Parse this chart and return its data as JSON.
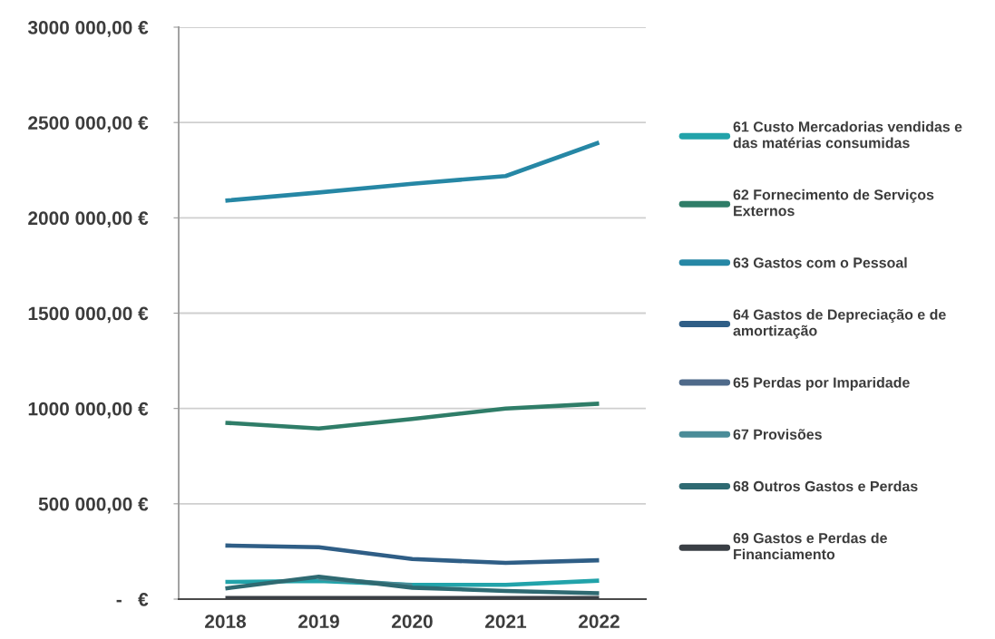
{
  "chart_data": {
    "type": "line",
    "categories": [
      "2018",
      "2019",
      "2020",
      "2021",
      "2022"
    ],
    "series": [
      {
        "name": "61 Custo Mercadorias vendidas e\ndas matérias consumidas",
        "color": "#22a3aa",
        "values": [
          90000,
          95000,
          75000,
          75000,
          97000
        ]
      },
      {
        "name": "62 Fornecimento de Serviços\nExternos",
        "color": "#2f7d68",
        "values": [
          925000,
          895000,
          945000,
          1000000,
          1025000
        ]
      },
      {
        "name": "63 Gastos com o Pessoal",
        "color": "#2687a5",
        "values": [
          2090000,
          2133000,
          2179000,
          2219000,
          2395000
        ]
      },
      {
        "name": "64 Gastos de Depreciação e de\namortização",
        "color": "#2f5e86",
        "values": [
          281000,
          272000,
          210000,
          190000,
          204000
        ]
      },
      {
        "name": "65 Perdas por Imparidade",
        "color": "#4f6a8a",
        "values": [
          null,
          null,
          null,
          null,
          null
        ]
      },
      {
        "name": "67 Provisões",
        "color": "#4a8c98",
        "values": [
          null,
          108000,
          72000,
          null,
          null
        ]
      },
      {
        "name": "68 Outros Gastos e Perdas",
        "color": "#2f6a72",
        "values": [
          56000,
          118000,
          60000,
          43000,
          31000
        ]
      },
      {
        "name": "69 Gastos e Perdas de\nFinanciamento",
        "color": "#3a3f45",
        "values": [
          6000,
          6000,
          6000,
          6000,
          6000
        ]
      }
    ],
    "ylim": [
      0,
      3000000
    ],
    "yticks": [
      {
        "value": 0,
        "label": "-   €"
      },
      {
        "value": 500000,
        "label": "500 000,00 €"
      },
      {
        "value": 1000000,
        "label": "1000 000,00 €"
      },
      {
        "value": 1500000,
        "label": "1500 000,00 €"
      },
      {
        "value": 2000000,
        "label": "2000 000,00 €"
      },
      {
        "value": 2500000,
        "label": "2500 000,00 €"
      },
      {
        "value": 3000000,
        "label": "3000 000,00 €"
      }
    ],
    "grid": "y",
    "legend": "right",
    "marker": "none",
    "line_style": "solid"
  }
}
